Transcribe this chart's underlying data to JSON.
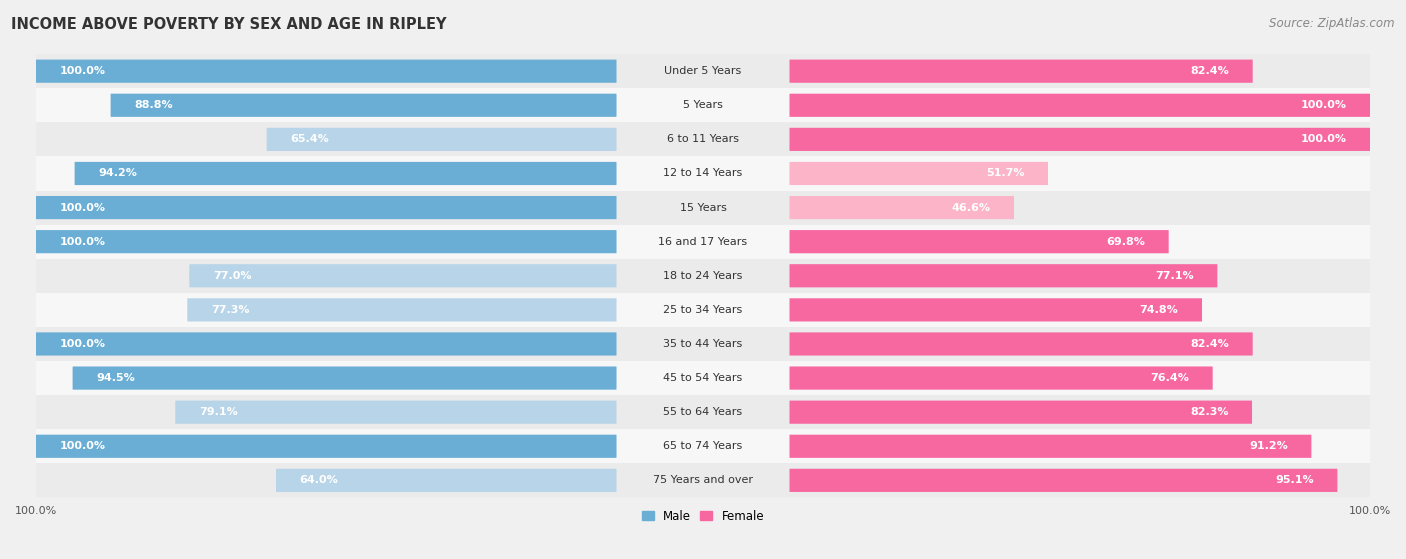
{
  "title": "INCOME ABOVE POVERTY BY SEX AND AGE IN RIPLEY",
  "source": "Source: ZipAtlas.com",
  "categories": [
    "Under 5 Years",
    "5 Years",
    "6 to 11 Years",
    "12 to 14 Years",
    "15 Years",
    "16 and 17 Years",
    "18 to 24 Years",
    "25 to 34 Years",
    "35 to 44 Years",
    "45 to 54 Years",
    "55 to 64 Years",
    "65 to 74 Years",
    "75 Years and over"
  ],
  "male_values": [
    100.0,
    88.8,
    65.4,
    94.2,
    100.0,
    100.0,
    77.0,
    77.3,
    100.0,
    94.5,
    79.1,
    100.0,
    64.0
  ],
  "female_values": [
    82.4,
    100.0,
    100.0,
    51.7,
    46.6,
    69.8,
    77.1,
    74.8,
    82.4,
    76.4,
    82.3,
    91.2,
    95.1
  ],
  "male_color": "#6aaed6",
  "male_color_light": "#b8d4e8",
  "female_color": "#f768a1",
  "female_color_light": "#fbb4c8",
  "male_label": "Male",
  "female_label": "Female",
  "row_color_odd": "#ebebeb",
  "row_color_even": "#f7f7f7",
  "background_color": "#f0f0f0",
  "title_fontsize": 10.5,
  "source_fontsize": 8.5,
  "label_fontsize": 8,
  "value_fontsize": 8,
  "bottom_label": "100.0%"
}
